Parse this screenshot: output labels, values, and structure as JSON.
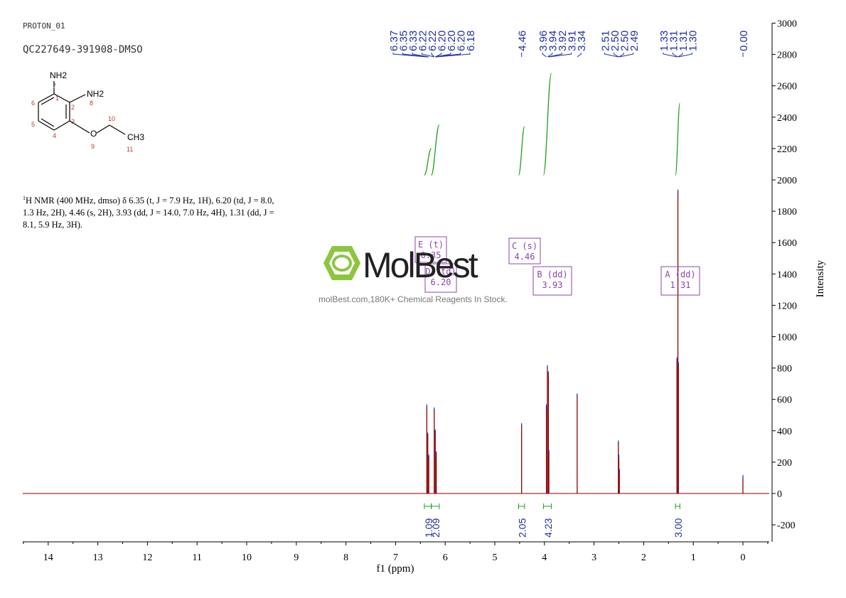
{
  "header": {
    "experiment": "PROTON_01",
    "sample": "QC227649-391908-DMSO"
  },
  "structure": {
    "groups": [
      "NH2",
      "NH2",
      "CH3",
      "O"
    ],
    "atom_numbers": [
      "1",
      "2",
      "3",
      "4",
      "5",
      "6",
      "7",
      "8",
      "9",
      "10",
      "11"
    ]
  },
  "nmr_text": {
    "nucleus_sup": "1",
    "body": "H NMR (400 MHz, dmso) δ 6.35 (t, J = 7.9 Hz, 1H), 6.20 (td, J = 8.0, 1.3 Hz, 2H), 4.46 (s, 2H), 3.93 (dd, J = 14.0, 7.0 Hz, 4H), 1.31 (dd, J = 8.1, 5.9 Hz, 3H)."
  },
  "watermark": {
    "name": "MolBest",
    "tagline": "molBest.com,180K+ Chemical Reagents In Stock."
  },
  "colors": {
    "spectrum": "#8b0000",
    "peak_labels": "#1f2fa0",
    "integral": "#1ea01e",
    "multiplet_box": "#8e44ad",
    "atom_numbers": "#c0392b"
  },
  "chart_data": {
    "type": "line",
    "xlabel": "f1 (ppm)",
    "ylabel": "Intensity",
    "xlim": [
      14.6,
      -0.5
    ],
    "ylim": [
      -250,
      3000
    ],
    "x_ticks": [
      14,
      13,
      12,
      11,
      10,
      9,
      8,
      7,
      6,
      5,
      4,
      3,
      2,
      1,
      0
    ],
    "y_ticks": [
      -200,
      0,
      200,
      400,
      600,
      800,
      1000,
      1200,
      1400,
      1600,
      1800,
      2000,
      2200,
      2400,
      2600,
      2800,
      3000
    ],
    "peaks": [
      {
        "ppm": 6.37,
        "height": 560
      },
      {
        "ppm": 6.35,
        "height": 380
      },
      {
        "ppm": 6.33,
        "height": 240
      },
      {
        "ppm": 6.22,
        "height": 540
      },
      {
        "ppm": 6.2,
        "height": 400
      },
      {
        "ppm": 6.18,
        "height": 260
      },
      {
        "ppm": 4.46,
        "height": 440
      },
      {
        "ppm": 3.96,
        "height": 560
      },
      {
        "ppm": 3.94,
        "height": 810
      },
      {
        "ppm": 3.92,
        "height": 770
      },
      {
        "ppm": 3.91,
        "height": 270
      },
      {
        "ppm": 3.34,
        "height": 630
      },
      {
        "ppm": 2.51,
        "height": 330
      },
      {
        "ppm": 2.5,
        "height": 240
      },
      {
        "ppm": 2.49,
        "height": 150
      },
      {
        "ppm": 1.33,
        "height": 860
      },
      {
        "ppm": 1.31,
        "height": 1930
      },
      {
        "ppm": 1.3,
        "height": 830
      },
      {
        "ppm": 0.0,
        "height": 110
      }
    ],
    "peak_labels": [
      "6.37",
      "6.35",
      "6.33",
      "6.22",
      "6.22",
      "6.20",
      "6.20",
      "6.20",
      "6.18",
      "4.46",
      "3.96",
      "3.94",
      "3.92",
      "3.91",
      "3.34",
      "2.51",
      "2.50",
      "2.50",
      "2.49",
      "1.33",
      "1.31",
      "1.31",
      "1.30",
      "0.00"
    ],
    "integrals": [
      {
        "from": 6.42,
        "to": 6.28,
        "value": "1.09",
        "y_start": 2030,
        "y_end": 2200
      },
      {
        "from": 6.28,
        "to": 6.12,
        "value": "2.09",
        "y_start": 2030,
        "y_end": 2350
      },
      {
        "from": 4.52,
        "to": 4.4,
        "value": "2.05",
        "y_start": 2030,
        "y_end": 2340
      },
      {
        "from": 4.02,
        "to": 3.86,
        "value": "4.23",
        "y_start": 2030,
        "y_end": 2680
      },
      {
        "from": 1.36,
        "to": 1.27,
        "value": "3.00",
        "y_start": 2030,
        "y_end": 2490
      }
    ],
    "multiplets": [
      {
        "letter": "E (t)",
        "shift": "6.35"
      },
      {
        "letter": "D (td)",
        "shift": "6.20"
      },
      {
        "letter": "C (s)",
        "shift": "4.46"
      },
      {
        "letter": "B (dd)",
        "shift": "3.93"
      },
      {
        "letter": "A (dd)",
        "shift": "1.31"
      }
    ]
  }
}
